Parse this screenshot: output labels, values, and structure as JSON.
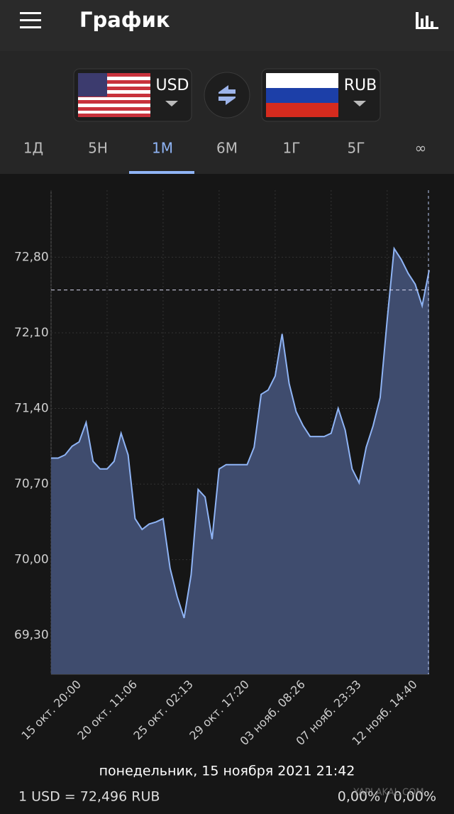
{
  "header": {
    "title": "График"
  },
  "converter": {
    "from": "USD",
    "to": "RUB"
  },
  "tabs": {
    "items": [
      "1Д",
      "5Н",
      "1М",
      "6М",
      "1Г",
      "5Г",
      "∞"
    ],
    "selected": 2
  },
  "chart_data": {
    "type": "line",
    "categories": [
      "15 окт. 20:00",
      null,
      null,
      null,
      null,
      null,
      null,
      null,
      "20 окт. 11:06",
      null,
      null,
      null,
      null,
      null,
      null,
      null,
      "25 окт. 02:13",
      null,
      null,
      null,
      null,
      null,
      null,
      null,
      "29 окт. 17:20",
      null,
      null,
      null,
      null,
      null,
      null,
      null,
      "03 нояб. 08:26",
      null,
      null,
      null,
      null,
      null,
      null,
      null,
      "07 нояб. 23:33",
      null,
      null,
      null,
      null,
      null,
      null,
      null,
      "12 нояб. 14:40",
      null,
      null,
      null,
      null,
      null,
      null
    ],
    "values": [
      70.94,
      70.94,
      70.97,
      71.05,
      71.09,
      71.27,
      70.91,
      70.84,
      70.84,
      70.91,
      71.17,
      70.97,
      70.38,
      70.28,
      70.33,
      70.35,
      70.38,
      69.92,
      69.66,
      69.46,
      69.86,
      70.65,
      70.58,
      70.19,
      70.84,
      70.88,
      70.88,
      70.88,
      70.88,
      71.04,
      71.53,
      71.57,
      71.7,
      72.09,
      71.63,
      71.37,
      71.24,
      71.14,
      71.14,
      71.14,
      71.17,
      71.4,
      71.2,
      70.84,
      70.71,
      71.04,
      71.24,
      71.5,
      72.22,
      72.88,
      72.78,
      72.65,
      72.55,
      72.35,
      72.68
    ],
    "color": "#8fb4f5",
    "ylim": [
      68.94,
      73.42
    ],
    "yticks": [
      {
        "value": 69.3,
        "label": "69,30"
      },
      {
        "value": 70.0,
        "label": "70,00"
      },
      {
        "value": 70.7,
        "label": "70,70"
      },
      {
        "value": 71.4,
        "label": "71,40"
      },
      {
        "value": 72.1,
        "label": "72,10"
      },
      {
        "value": 72.8,
        "label": "72,80"
      }
    ],
    "grid": true,
    "reference_line": 72.496
  },
  "footer": {
    "date": "понедельник, 15 ноября 2021 21:42",
    "rate": "1 USD = 72,496 RUB",
    "change": "0,00% / 0,00%",
    "watermark": "YAPLAKAL.COM"
  }
}
